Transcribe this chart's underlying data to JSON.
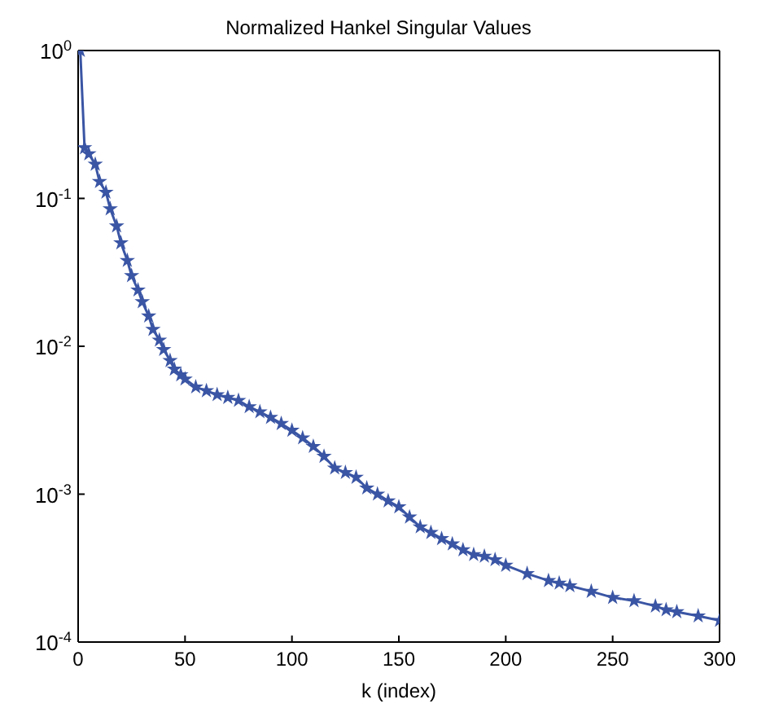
{
  "chart_data": {
    "type": "line",
    "title": "Normalized Hankel Singular Values",
    "xlabel": "k (index)",
    "series": [
      {
        "color": "#3a55a4",
        "x": [
          1,
          3,
          5,
          8,
          10,
          13,
          15,
          18,
          20,
          23,
          25,
          28,
          30,
          33,
          35,
          38,
          40,
          43,
          45,
          48,
          50,
          55,
          60,
          65,
          70,
          75,
          80,
          85,
          90,
          95,
          100,
          105,
          110,
          115,
          120,
          125,
          130,
          135,
          140,
          145,
          150,
          155,
          160,
          165,
          170,
          175,
          180,
          185,
          190,
          195,
          200,
          210,
          220,
          225,
          230,
          240,
          250,
          260,
          270,
          275,
          280,
          290,
          300
        ],
        "values": [
          1.0,
          0.22,
          0.2,
          0.17,
          0.13,
          0.11,
          0.085,
          0.065,
          0.05,
          0.038,
          0.03,
          0.024,
          0.02,
          0.016,
          0.013,
          0.011,
          0.0095,
          0.008,
          0.007,
          0.0064,
          0.006,
          0.0053,
          0.005,
          0.0047,
          0.0045,
          0.0043,
          0.0039,
          0.0036,
          0.0033,
          0.003,
          0.0027,
          0.0024,
          0.0021,
          0.0018,
          0.0015,
          0.0014,
          0.0013,
          0.0011,
          0.001,
          0.0009,
          0.00082,
          0.0007,
          0.0006,
          0.00055,
          0.0005,
          0.00046,
          0.00042,
          0.00039,
          0.00038,
          0.00036,
          0.00033,
          0.00029,
          0.00026,
          0.00025,
          0.00024,
          0.00022,
          0.0002,
          0.00019,
          0.000175,
          0.000165,
          0.00016,
          0.00015,
          0.00014
        ]
      }
    ],
    "xlim": [
      0,
      300
    ],
    "xticks": [
      0,
      50,
      100,
      150,
      200,
      250,
      300
    ],
    "ylim": [
      0.0001,
      1
    ],
    "yticks": [
      {
        "value": 0.0001,
        "label": "10$^{-4}$"
      },
      {
        "value": 0.001,
        "label": "10$^{-3}$"
      },
      {
        "value": 0.01,
        "label": "10$^{-2}$"
      },
      {
        "value": 0.1,
        "label": "10$^{-1}$"
      },
      {
        "value": 1,
        "label": "10$^{0}$"
      }
    ],
    "log": "y",
    "grid": false,
    "legend": false,
    "marker": "star",
    "line_style": "solid"
  }
}
